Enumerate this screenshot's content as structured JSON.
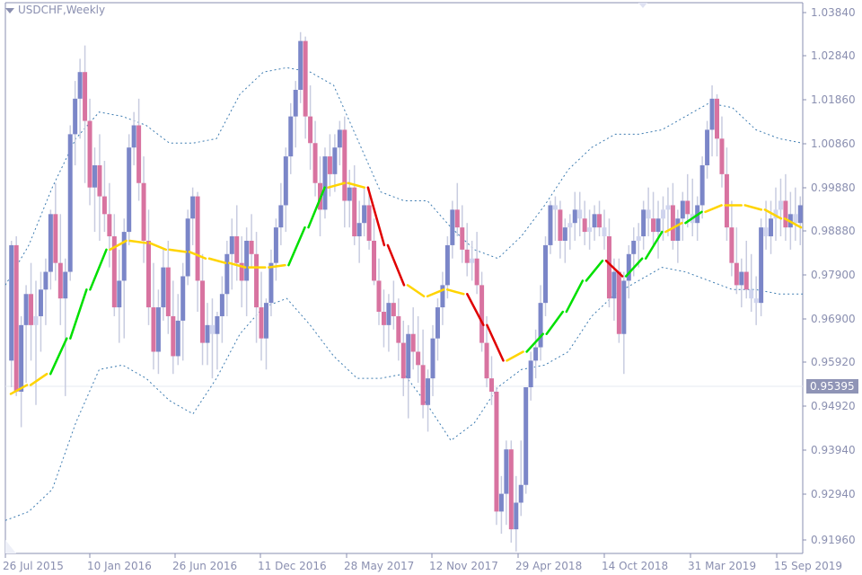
{
  "window": {
    "title": "USDCHF,Weekly",
    "current_price": "0.95395"
  },
  "axes": {
    "y_ticks": [
      "1.03840",
      "1.02840",
      "1.01860",
      "1.00860",
      "0.99880",
      "0.98880",
      "0.97900",
      "0.96900",
      "0.95920",
      "0.94920",
      "0.93940",
      "0.92940",
      "0.91960"
    ],
    "x_ticks": [
      "26 Jul 2015",
      "10 Jan 2016",
      "26 Jun 2016",
      "11 Dec 2016",
      "28 May 2017",
      "12 Nov 2017",
      "29 Apr 2018",
      "14 Oct 2018",
      "31 Mar 2019",
      "15 Sep 2019"
    ]
  },
  "colors": {
    "bull": "#7b86c8",
    "bear": "#d873a0",
    "neutral": "#cfd4ee",
    "wick": "#c8cce0",
    "ma_flat": "#ffd400",
    "ma_up": "#00e000",
    "ma_down": "#e00000",
    "band": "#3e7cb1",
    "axis": "#8a8fb0",
    "price_tag": "#8f94b6"
  },
  "chart_data": {
    "type": "candlestick",
    "title": "USDCHF,Weekly",
    "xlabel": "",
    "ylabel": "",
    "ylim": [
      0.9196,
      1.0384
    ],
    "x_ticks": [
      "26 Jul 2015",
      "10 Jan 2016",
      "26 Jun 2016",
      "11 Dec 2016",
      "28 May 2017",
      "12 Nov 2017",
      "29 Apr 2018",
      "14 Oct 2018",
      "31 Mar 2019",
      "15 Sep 2019"
    ],
    "current_price": 0.95395,
    "candles": [
      [
        0.96,
        0.987,
        0.954,
        0.986
      ],
      [
        0.986,
        0.988,
        0.952,
        0.953
      ],
      [
        0.953,
        0.97,
        0.945,
        0.968
      ],
      [
        0.968,
        0.977,
        0.955,
        0.975
      ],
      [
        0.975,
        0.982,
        0.96,
        0.968
      ],
      [
        0.968,
        0.978,
        0.95,
        0.97
      ],
      [
        0.97,
        0.98,
        0.962,
        0.976
      ],
      [
        0.976,
        0.983,
        0.968,
        0.98
      ],
      [
        0.98,
        0.994,
        0.976,
        0.993
      ],
      [
        0.993,
        1.0,
        0.978,
        0.982
      ],
      [
        0.982,
        0.993,
        0.968,
        0.974
      ],
      [
        0.974,
        0.983,
        0.952,
        0.98
      ],
      [
        0.98,
        1.013,
        0.978,
        1.011
      ],
      [
        1.011,
        1.023,
        1.004,
        1.019
      ],
      [
        1.019,
        1.028,
        1.01,
        1.025
      ],
      [
        1.025,
        1.031,
        1.0,
        1.014
      ],
      [
        1.014,
        1.019,
        0.995,
        0.999
      ],
      [
        0.999,
        1.008,
        0.989,
        1.004
      ],
      [
        1.004,
        1.011,
        0.987,
        0.997
      ],
      [
        0.997,
        1.005,
        0.989,
        0.993
      ],
      [
        0.993,
        1.0,
        0.981,
        0.988
      ],
      [
        0.988,
        0.993,
        0.97,
        0.972
      ],
      [
        0.972,
        0.985,
        0.964,
        0.978
      ],
      [
        0.978,
        0.992,
        0.965,
        0.989
      ],
      [
        0.989,
        1.011,
        0.986,
        1.008
      ],
      [
        1.008,
        1.016,
        1.004,
        1.013
      ],
      [
        1.013,
        1.019,
        0.996,
        1.0
      ],
      [
        1.0,
        1.006,
        0.982,
        0.987
      ],
      [
        0.987,
        0.994,
        0.968,
        0.972
      ],
      [
        0.972,
        0.982,
        0.958,
        0.962
      ],
      [
        0.962,
        0.976,
        0.957,
        0.972
      ],
      [
        0.972,
        0.985,
        0.969,
        0.981
      ],
      [
        0.981,
        0.987,
        0.966,
        0.97
      ],
      [
        0.97,
        0.978,
        0.957,
        0.961
      ],
      [
        0.961,
        0.975,
        0.959,
        0.969
      ],
      [
        0.969,
        0.982,
        0.96,
        0.979
      ],
      [
        0.979,
        0.994,
        0.977,
        0.992
      ],
      [
        0.992,
        0.999,
        0.986,
        0.997
      ],
      [
        0.997,
        0.998,
        0.971,
        0.978
      ],
      [
        0.978,
        0.984,
        0.959,
        0.964
      ],
      [
        0.964,
        0.973,
        0.959,
        0.968
      ],
      [
        0.968,
        0.974,
        0.956,
        0.966
      ],
      [
        0.966,
        0.971,
        0.958,
        0.97
      ],
      [
        0.97,
        0.979,
        0.964,
        0.975
      ],
      [
        0.975,
        0.987,
        0.97,
        0.984
      ],
      [
        0.984,
        0.992,
        0.976,
        0.988
      ],
      [
        0.988,
        0.995,
        0.978,
        0.982
      ],
      [
        0.982,
        0.988,
        0.972,
        0.978
      ],
      [
        0.978,
        0.99,
        0.97,
        0.987
      ],
      [
        0.987,
        0.993,
        0.981,
        0.984
      ],
      [
        0.984,
        0.989,
        0.964,
        0.972
      ],
      [
        0.972,
        0.98,
        0.96,
        0.965
      ],
      [
        0.965,
        0.974,
        0.958,
        0.973
      ],
      [
        0.973,
        0.985,
        0.97,
        0.982
      ],
      [
        0.982,
        0.992,
        0.978,
        0.99
      ],
      [
        0.99,
        1.0,
        0.986,
        0.995
      ],
      [
        0.995,
        1.008,
        0.989,
        1.006
      ],
      [
        1.006,
        1.018,
        1.002,
        1.015
      ],
      [
        1.015,
        1.023,
        1.008,
        1.021
      ],
      [
        1.021,
        1.034,
        1.018,
        1.032
      ],
      [
        1.032,
        1.033,
        1.01,
        1.015
      ],
      [
        1.015,
        1.022,
        1.003,
        1.009
      ],
      [
        1.009,
        1.014,
        0.997,
        1.0
      ],
      [
        1.0,
        1.006,
        0.988,
        0.994
      ],
      [
        0.994,
        1.008,
        0.992,
        1.006
      ],
      [
        1.006,
        1.011,
        0.997,
        1.002
      ],
      [
        1.002,
        1.011,
        0.998,
        1.008
      ],
      [
        1.008,
        1.014,
        1.004,
        1.012
      ],
      [
        1.012,
        1.015,
        0.99,
        0.996
      ],
      [
        0.996,
        1.003,
        0.99,
        0.999
      ],
      [
        0.999,
        1.004,
        0.986,
        0.988
      ],
      [
        0.988,
        0.996,
        0.982,
        0.991
      ],
      [
        0.991,
        0.999,
        0.988,
        0.995
      ],
      [
        0.995,
        0.999,
        0.985,
        0.987
      ],
      [
        0.987,
        0.992,
        0.977,
        0.978
      ],
      [
        0.978,
        0.983,
        0.968,
        0.971
      ],
      [
        0.971,
        0.976,
        0.963,
        0.968
      ],
      [
        0.968,
        0.975,
        0.962,
        0.973
      ],
      [
        0.973,
        0.978,
        0.967,
        0.97
      ],
      [
        0.97,
        0.974,
        0.96,
        0.964
      ],
      [
        0.964,
        0.969,
        0.952,
        0.956
      ],
      [
        0.956,
        0.968,
        0.947,
        0.966
      ],
      [
        0.966,
        0.972,
        0.958,
        0.962
      ],
      [
        0.962,
        0.97,
        0.955,
        0.959
      ],
      [
        0.959,
        0.967,
        0.947,
        0.95
      ],
      [
        0.95,
        0.958,
        0.944,
        0.956
      ],
      [
        0.956,
        0.968,
        0.952,
        0.965
      ],
      [
        0.965,
        0.974,
        0.96,
        0.972
      ],
      [
        0.972,
        0.98,
        0.968,
        0.977
      ],
      [
        0.977,
        0.988,
        0.974,
        0.986
      ],
      [
        0.986,
        0.996,
        0.983,
        0.994
      ],
      [
        0.994,
        1.0,
        0.988,
        0.99
      ],
      [
        0.99,
        0.995,
        0.982,
        0.985
      ],
      [
        0.985,
        0.991,
        0.979,
        0.982
      ],
      [
        0.982,
        0.987,
        0.978,
        0.983
      ],
      [
        0.983,
        0.989,
        0.975,
        0.977
      ],
      [
        0.977,
        0.98,
        0.962,
        0.964
      ],
      [
        0.964,
        0.97,
        0.954,
        0.956
      ],
      [
        0.956,
        0.961,
        0.95,
        0.953
      ],
      [
        0.953,
        0.954,
        0.923,
        0.926
      ],
      [
        0.926,
        0.934,
        0.921,
        0.93
      ],
      [
        0.93,
        0.942,
        0.923,
        0.94
      ],
      [
        0.94,
        0.942,
        0.919,
        0.922
      ],
      [
        0.922,
        0.934,
        0.917,
        0.928
      ],
      [
        0.928,
        0.942,
        0.925,
        0.932
      ],
      [
        0.932,
        0.946,
        0.93,
        0.954
      ],
      [
        0.954,
        0.962,
        0.951,
        0.96
      ],
      [
        0.96,
        0.967,
        0.956,
        0.963
      ],
      [
        0.963,
        0.977,
        0.96,
        0.973
      ],
      [
        0.973,
        0.988,
        0.97,
        0.986
      ],
      [
        0.986,
        0.996,
        0.984,
        0.995
      ],
      [
        0.995,
        0.997,
        0.987,
        0.994
      ],
      [
        0.994,
        0.996,
        0.983,
        0.987
      ],
      [
        0.987,
        0.992,
        0.982,
        0.99
      ],
      [
        0.99,
        0.993,
        0.985,
        0.991
      ],
      [
        0.991,
        0.998,
        0.987,
        0.994
      ],
      [
        0.994,
        0.998,
        0.988,
        0.992
      ],
      [
        0.992,
        0.996,
        0.986,
        0.989
      ],
      [
        0.989,
        0.994,
        0.985,
        0.99
      ],
      [
        0.99,
        0.995,
        0.987,
        0.993
      ],
      [
        0.993,
        0.996,
        0.988,
        0.99
      ],
      [
        0.99,
        0.994,
        0.985,
        0.988
      ],
      [
        0.988,
        0.992,
        0.972,
        0.974
      ],
      [
        0.974,
        0.983,
        0.969,
        0.98
      ],
      [
        0.98,
        0.983,
        0.964,
        0.966
      ],
      [
        0.966,
        0.98,
        0.957,
        0.978
      ],
      [
        0.978,
        0.986,
        0.974,
        0.984
      ],
      [
        0.984,
        0.99,
        0.979,
        0.987
      ],
      [
        0.987,
        0.991,
        0.981,
        0.988
      ],
      [
        0.988,
        0.996,
        0.985,
        0.994
      ],
      [
        0.994,
        0.999,
        0.988,
        0.992
      ],
      [
        0.992,
        0.998,
        0.986,
        0.989
      ],
      [
        0.989,
        0.996,
        0.983,
        0.992
      ],
      [
        0.992,
        0.997,
        0.987,
        0.994
      ],
      [
        0.994,
        0.999,
        0.988,
        0.995
      ],
      [
        0.995,
        1.0,
        0.985,
        0.987
      ],
      [
        0.987,
        0.994,
        0.982,
        0.992
      ],
      [
        0.992,
        0.998,
        0.987,
        0.996
      ],
      [
        0.996,
        1.002,
        0.99,
        0.993
      ],
      [
        0.993,
        1.001,
        0.988,
        0.991
      ],
      [
        0.991,
        0.997,
        0.987,
        0.995
      ],
      [
        0.995,
        1.006,
        0.992,
        1.004
      ],
      [
        1.004,
        1.014,
        1.001,
        1.012
      ],
      [
        1.012,
        1.022,
        1.006,
        1.019
      ],
      [
        1.019,
        1.02,
        1.006,
        1.01
      ],
      [
        1.01,
        1.015,
        0.999,
        1.002
      ],
      [
        1.002,
        1.008,
        0.987,
        0.99
      ],
      [
        0.99,
        0.996,
        0.979,
        0.982
      ],
      [
        0.982,
        0.99,
        0.975,
        0.977
      ],
      [
        0.977,
        0.983,
        0.972,
        0.98
      ],
      [
        0.98,
        0.987,
        0.974,
        0.976
      ],
      [
        0.976,
        0.984,
        0.971,
        0.974
      ],
      [
        0.974,
        0.979,
        0.968,
        0.973
      ],
      [
        0.973,
        0.992,
        0.97,
        0.99
      ],
      [
        0.99,
        0.996,
        0.985,
        0.988
      ],
      [
        0.988,
        0.996,
        0.984,
        0.992
      ],
      [
        0.992,
        0.999,
        0.987,
        0.994
      ],
      [
        0.994,
        1.001,
        0.988,
        0.996
      ],
      [
        0.996,
        1.002,
        0.987,
        0.99
      ],
      [
        0.99,
        0.998,
        0.985,
        0.993
      ],
      [
        0.993,
        0.999,
        0.987,
        0.991
      ],
      [
        0.991,
        0.997,
        0.986,
        0.995
      ]
    ],
    "moving_average": {
      "description": "Colored MA: yellow=flat, green=rising, red=falling",
      "approx_path_values": [
        0.9525,
        0.9545,
        0.957,
        0.965,
        0.976,
        0.985,
        0.987,
        0.9865,
        0.985,
        0.9845,
        0.983,
        0.982,
        0.981,
        0.981,
        0.9815,
        0.99,
        0.999,
        1.0,
        0.999,
        0.986,
        0.977,
        0.9745,
        0.976,
        0.975,
        0.968,
        0.96,
        0.962,
        0.966,
        0.971,
        0.978,
        0.9825,
        0.979,
        0.983,
        0.989,
        0.991,
        0.9935,
        0.995,
        0.995,
        0.994,
        0.992,
        0.99
      ]
    },
    "bands": {
      "upper_approx": [
        0.977,
        0.986,
        0.999,
        1.01,
        1.016,
        1.015,
        1.013,
        1.009,
        1.009,
        1.01,
        1.02,
        1.025,
        1.026,
        1.025,
        1.022,
        1.01,
        0.998,
        0.996,
        0.996,
        0.99,
        0.985,
        0.983,
        0.988,
        0.995,
        1.003,
        1.008,
        1.011,
        1.011,
        1.012,
        1.015,
        1.018,
        1.017,
        1.012,
        1.01,
        1.009
      ],
      "lower_approx": [
        0.924,
        0.926,
        0.931,
        0.946,
        0.958,
        0.959,
        0.956,
        0.951,
        0.948,
        0.956,
        0.966,
        0.972,
        0.974,
        0.968,
        0.961,
        0.956,
        0.956,
        0.957,
        0.95,
        0.942,
        0.946,
        0.954,
        0.958,
        0.959,
        0.962,
        0.97,
        0.975,
        0.978,
        0.981,
        0.98,
        0.978,
        0.976,
        0.976,
        0.975,
        0.975
      ]
    }
  }
}
